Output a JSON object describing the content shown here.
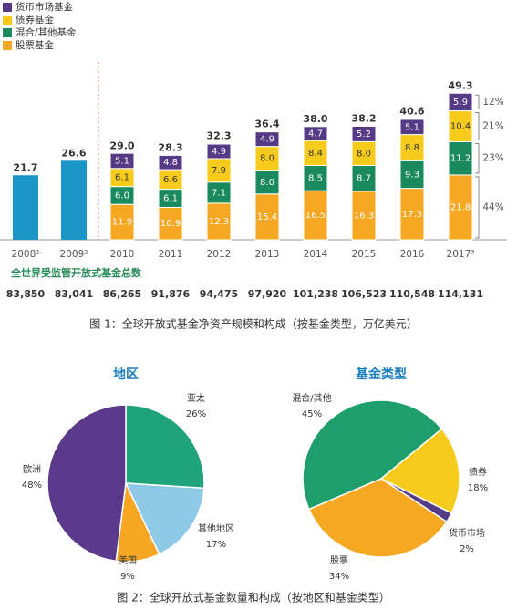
{
  "chart_data": [
    {
      "type": "bar",
      "stacked": true,
      "categories": [
        "2008²",
        "2009²",
        "2010",
        "2011",
        "2012",
        "2013",
        "2014",
        "2015",
        "2016",
        "2017³"
      ],
      "ylim": [
        0,
        50
      ],
      "series": [
        {
          "name": "股票基金",
          "color": "#f7a823",
          "label_color": "#ffffff",
          "values": [
            null,
            null,
            11.9,
            10.9,
            12.3,
            15.4,
            16.5,
            16.3,
            17.3,
            21.8
          ],
          "value_labels": [
            null,
            null,
            "11.9",
            "10.9",
            "12.3",
            "15.4",
            "16.5",
            "16.3",
            "17.3",
            "21.8"
          ],
          "share": {
            "value": 44,
            "label": "44%"
          }
        },
        {
          "name": "混合/其他基金",
          "color": "#1a8a5e",
          "label_color": "#ffffff",
          "values": [
            null,
            null,
            6.0,
            6.1,
            7.1,
            8.0,
            8.5,
            8.7,
            9.3,
            11.2
          ],
          "value_labels": [
            null,
            null,
            "6.0",
            "6.1",
            "7.1",
            "8.0",
            "8.5",
            "8.7",
            "9.3",
            "11.2"
          ],
          "share": {
            "value": 23,
            "label": "23%"
          }
        },
        {
          "name": "债券基金",
          "color": "#f6cb1c",
          "label_color": "#333333",
          "values": [
            null,
            null,
            6.1,
            6.6,
            7.9,
            8.0,
            8.4,
            8.0,
            8.8,
            10.4
          ],
          "value_labels": [
            null,
            null,
            "6.1",
            "6.6",
            "7.9",
            "8.0",
            "8.4",
            "8.0",
            "8.8",
            "10.4"
          ],
          "share": {
            "value": 21,
            "label": "21%"
          }
        },
        {
          "name": "货币市场基金",
          "color": "#553a86",
          "label_color": "#ffffff",
          "values": [
            null,
            null,
            5.1,
            4.8,
            4.9,
            4.9,
            4.7,
            5.2,
            5.1,
            5.9
          ],
          "value_labels": [
            null,
            null,
            "5.1",
            "4.8",
            "4.9",
            "4.9",
            "4.7",
            "5.2",
            "5.1",
            "5.9"
          ],
          "share": {
            "value": 12,
            "label": "12%"
          }
        }
      ],
      "totals": {
        "color": "#1b95c6",
        "values": [
          21.7,
          26.6,
          29.0,
          28.3,
          32.3,
          36.4,
          38.0,
          38.2,
          40.6,
          49.3
        ],
        "value_labels": [
          "21.7",
          "26.6",
          "29.0",
          "28.3",
          "32.3",
          "36.4",
          "38.0",
          "38.2",
          "40.6",
          "49.3"
        ]
      },
      "fund_count_title": "全世界受监管开放式基金总数",
      "fund_counts": {
        "values": [
          83850,
          83041,
          86265,
          91876,
          94475,
          97920,
          101238,
          106523,
          110548,
          114131
        ],
        "value_labels": [
          "83,850",
          "83,041",
          "86,265",
          "91,876",
          "94,475",
          "97,920",
          "101,238",
          "106,523",
          "110,548",
          "114,131"
        ]
      },
      "caption": "图 1：全球开放式基金净资产规模和构成（按基金类型，万亿美元）"
    },
    {
      "type": "pie",
      "title": "地区",
      "categories": [
        "亚太",
        "其他地区",
        "美国",
        "欧洲"
      ],
      "values": [
        26,
        17,
        9,
        48
      ],
      "value_labels": [
        "26%",
        "17%",
        "9%",
        "48%"
      ],
      "colors": [
        "#1fa37a",
        "#8ecae8",
        "#f5a623",
        "#5b3a8c"
      ]
    },
    {
      "type": "pie",
      "title": "基金类型",
      "categories": [
        "混合/其他",
        "债券",
        "货币市场",
        "股票"
      ],
      "values": [
        45,
        18,
        2,
        34
      ],
      "value_labels": [
        "45%",
        "18%",
        "2%",
        "34%"
      ],
      "colors": [
        "#1d9e6a",
        "#f6cb1c",
        "#553a86",
        "#f7a823"
      ]
    }
  ],
  "figure2_caption": "图 2：全球开放式基金数量和构成（按地区和基金类型）"
}
